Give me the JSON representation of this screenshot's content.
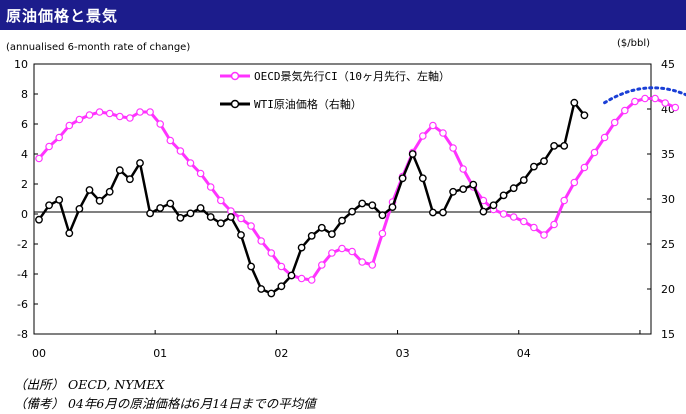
{
  "header": {
    "title": "原油価格と景気"
  },
  "notes": {
    "source": "（出所） OECD, NYMEX",
    "remark": "（備考） 04年6月の原油価格は6月14日までの平均値"
  },
  "chart_data": {
    "type": "line",
    "left_unit": "(annualised 6-month rate of change)",
    "right_unit": "($/bbl)",
    "x_ticks": [
      "00",
      "01",
      "02",
      "03",
      "04"
    ],
    "left_ylim": [
      -8,
      10
    ],
    "left_ticks": [
      "10",
      "8",
      "6",
      "4",
      "2",
      "0",
      "-2",
      "-4",
      "-6",
      "-8"
    ],
    "right_ylim": [
      15,
      45
    ],
    "right_ticks": [
      "45",
      "40",
      "35",
      "30",
      "25",
      "20",
      "15"
    ],
    "colors": {
      "oecd": "#ff33ff",
      "wti": "#000000",
      "forecast": "#1a3fd6"
    },
    "legend": {
      "placement": "top-center"
    },
    "series": [
      {
        "name": "OECD景気先行CI（10ヶ月先行、左軸）",
        "axis": "left",
        "values": [
          3.7,
          4.5,
          5.1,
          5.9,
          6.3,
          6.6,
          6.8,
          6.7,
          6.5,
          6.4,
          6.8,
          6.8,
          6.0,
          4.9,
          4.2,
          3.4,
          2.7,
          1.8,
          0.9,
          0.2,
          -0.3,
          -0.8,
          -1.8,
          -2.6,
          -3.5,
          -4.1,
          -4.3,
          -4.4,
          -3.4,
          -2.6,
          -2.3,
          -2.5,
          -3.2,
          -3.4,
          -1.3,
          0.8,
          2.5,
          4.1,
          5.2,
          5.9,
          5.4,
          4.4,
          3.0,
          1.8,
          0.9,
          0.3,
          0.0,
          -0.2,
          -0.5,
          -0.9,
          -1.4,
          -0.7,
          0.9,
          2.1,
          3.1,
          4.1,
          5.1,
          6.1,
          6.9,
          7.5,
          7.7,
          7.7,
          7.4,
          7.1
        ]
      },
      {
        "name": "WTI原油価格（右軸）",
        "axis": "right",
        "values": [
          27.7,
          29.3,
          29.9,
          26.2,
          28.9,
          31.0,
          29.8,
          30.8,
          33.2,
          32.2,
          34.0,
          28.4,
          29.0,
          29.5,
          27.9,
          28.4,
          29.0,
          28.0,
          27.3,
          28.0,
          26.0,
          22.5,
          20.0,
          19.5,
          20.3,
          21.5,
          24.6,
          25.9,
          26.8,
          26.1,
          27.6,
          28.6,
          29.5,
          29.3,
          28.2,
          29.1,
          32.3,
          35.0,
          32.3,
          28.5,
          28.5,
          30.8,
          31.1,
          31.6,
          28.6,
          29.3,
          30.4,
          31.2,
          32.1,
          33.6,
          34.2,
          35.9,
          35.9,
          40.7,
          39.3
        ]
      },
      {
        "name": "",
        "axis": "right",
        "values": [
          40.7,
          42.6,
          40.4
        ]
      }
    ]
  }
}
